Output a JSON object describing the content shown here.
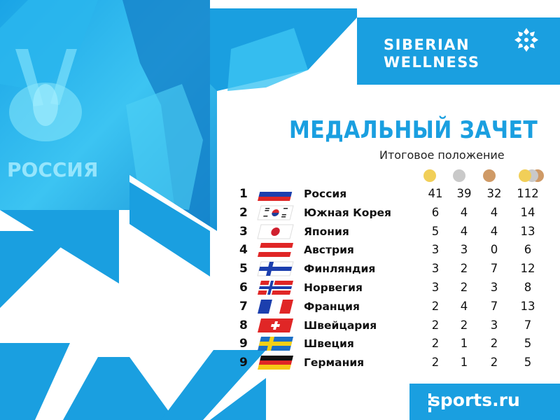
{
  "brand": {
    "line1": "SIBERIAN",
    "line2": "WELLNESS",
    "icon": "snowflake-icon"
  },
  "photo": {
    "jersey_text": "РОССИЯ"
  },
  "title": "МЕДАЛЬНЫЙ ЗАЧЕТ",
  "subtitle": "Итоговое положение",
  "medal_colors": {
    "gold": "#f1cf58",
    "silver": "#c9c9c9",
    "bronze": "#cf9a66"
  },
  "accent_color": "#1a9fe0",
  "standings": [
    {
      "rank": "1",
      "country": "Россия",
      "flag": "russia",
      "gold": "41",
      "silver": "39",
      "bronze": "32",
      "total": "112"
    },
    {
      "rank": "2",
      "country": "Южная Корея",
      "flag": "south-korea",
      "gold": "6",
      "silver": "4",
      "bronze": "4",
      "total": "14"
    },
    {
      "rank": "3",
      "country": "Япония",
      "flag": "japan",
      "gold": "5",
      "silver": "4",
      "bronze": "4",
      "total": "13"
    },
    {
      "rank": "4",
      "country": "Австрия",
      "flag": "austria",
      "gold": "3",
      "silver": "3",
      "bronze": "0",
      "total": "6"
    },
    {
      "rank": "5",
      "country": "Финляндия",
      "flag": "finland",
      "gold": "3",
      "silver": "2",
      "bronze": "7",
      "total": "12"
    },
    {
      "rank": "6",
      "country": "Норвегия",
      "flag": "norway",
      "gold": "3",
      "silver": "2",
      "bronze": "3",
      "total": "8"
    },
    {
      "rank": "7",
      "country": "Франция",
      "flag": "france",
      "gold": "2",
      "silver": "4",
      "bronze": "7",
      "total": "13"
    },
    {
      "rank": "8",
      "country": "Швейцария",
      "flag": "switzerland",
      "gold": "2",
      "silver": "2",
      "bronze": "3",
      "total": "7"
    },
    {
      "rank": "9",
      "country": "Швеция",
      "flag": "sweden",
      "gold": "2",
      "silver": "1",
      "bronze": "2",
      "total": "5"
    },
    {
      "rank": "9",
      "country": "Германия",
      "flag": "germany",
      "gold": "2",
      "silver": "1",
      "bronze": "2",
      "total": "5"
    }
  ],
  "footer": {
    "site": "sports.ru"
  }
}
